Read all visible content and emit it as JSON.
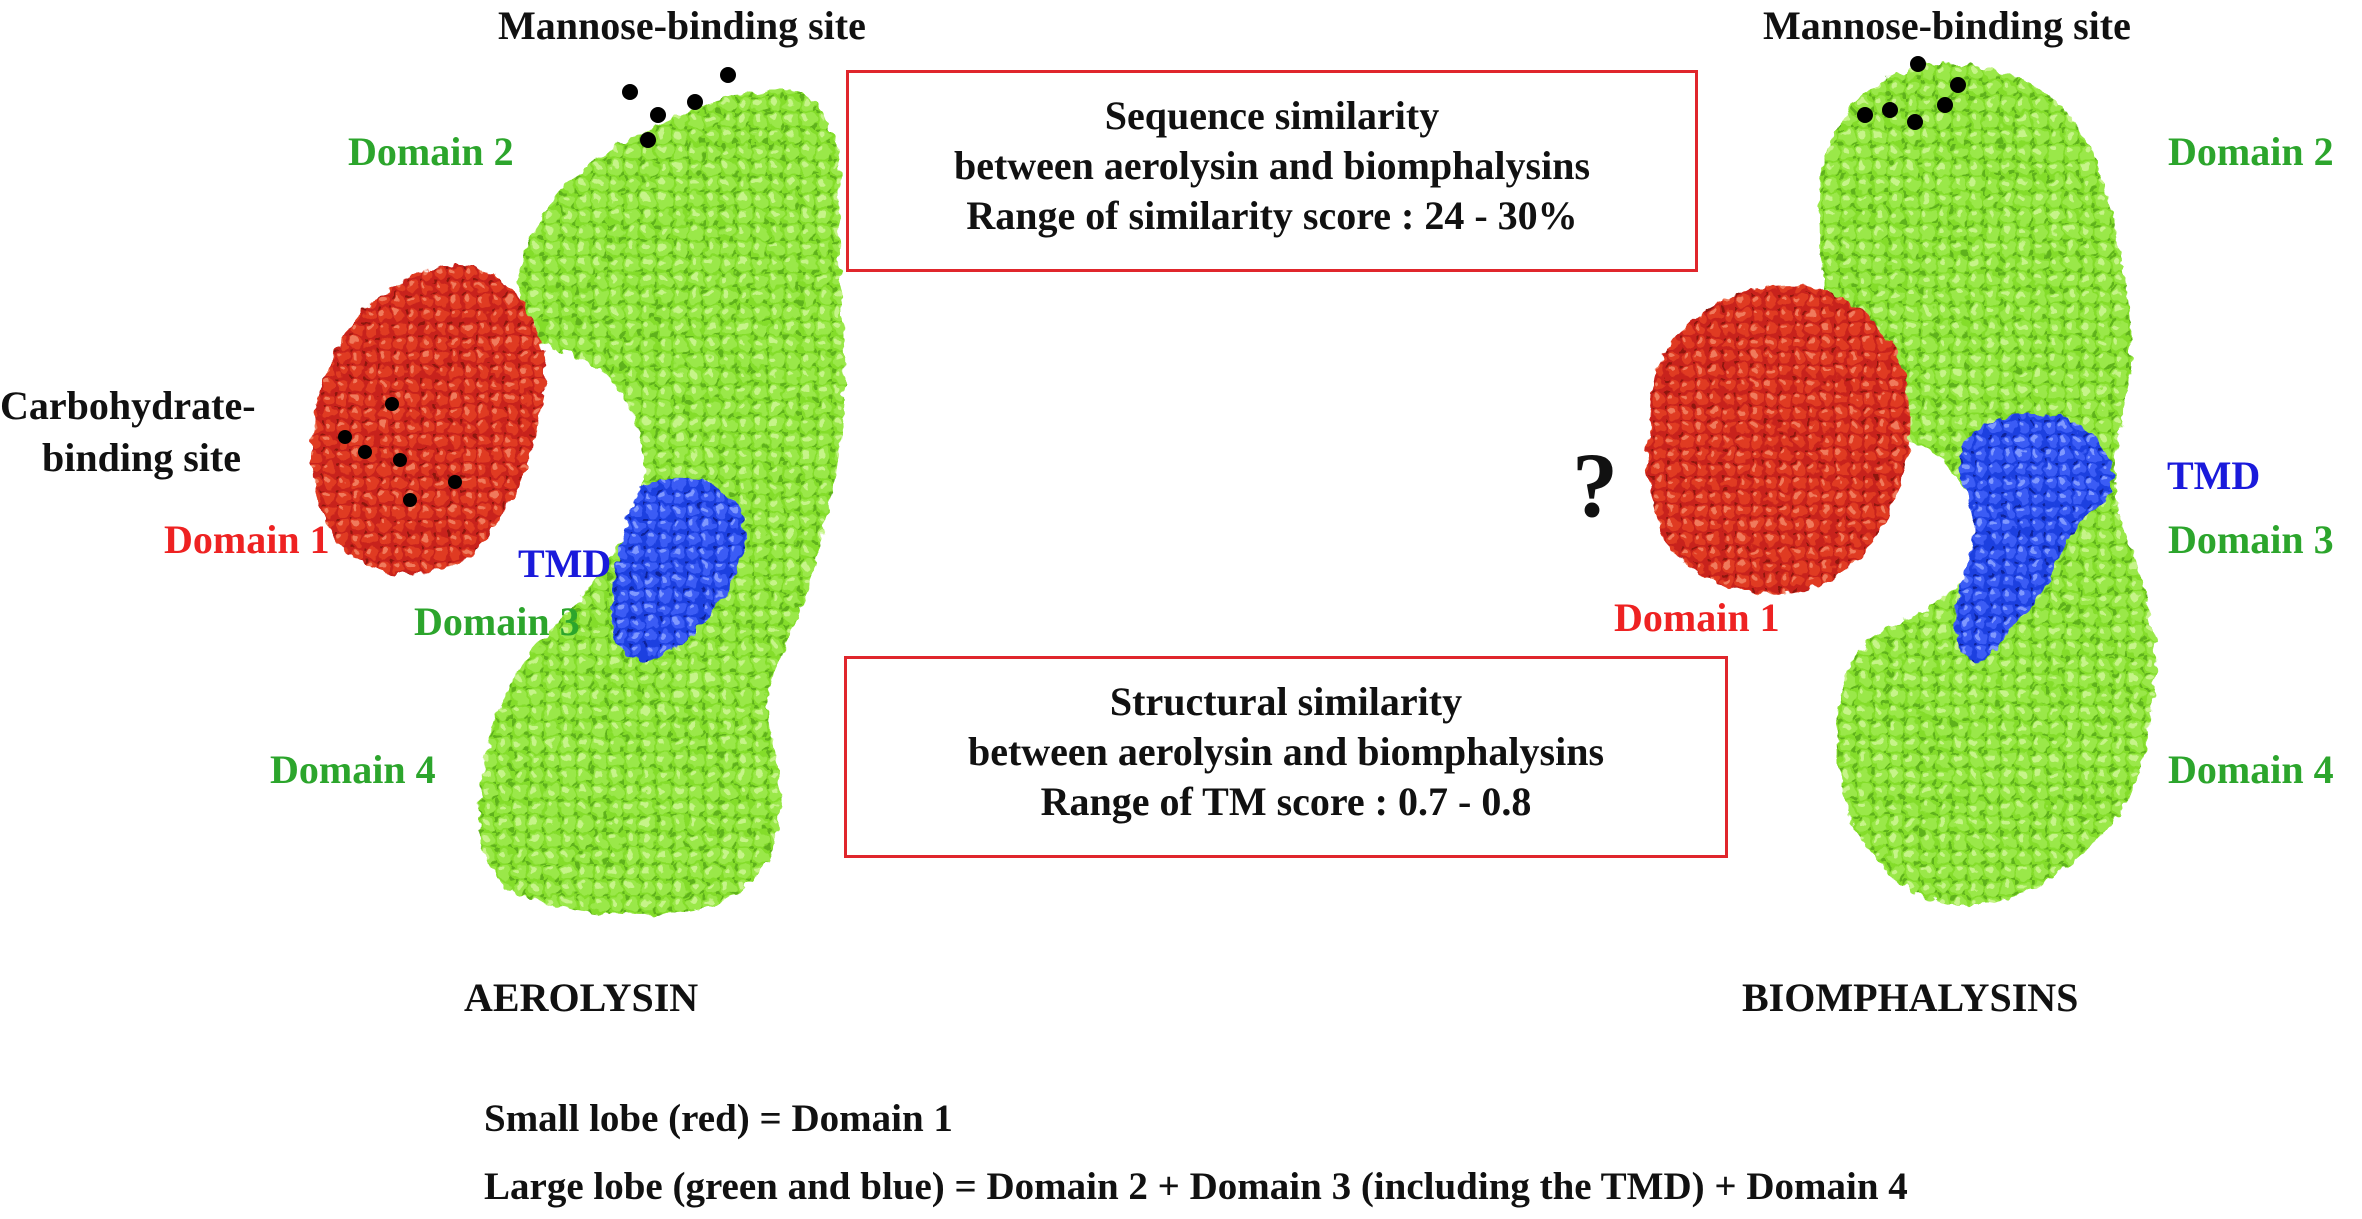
{
  "aerolysin": {
    "mannose_label": "Mannose-binding site",
    "domain2": "Domain 2",
    "carb_label_line1": "Carbohydrate-",
    "carb_label_line2": "binding site",
    "domain1": "Domain 1",
    "tmd": "TMD",
    "domain3": "Domain 3",
    "domain4": "Domain 4",
    "name": "AEROLYSIN"
  },
  "biomphalysins": {
    "mannose_label": "Mannose-binding site",
    "domain2": "Domain 2",
    "tmd": "TMD",
    "domain3": "Domain 3",
    "domain1": "Domain 1",
    "domain4": "Domain 4",
    "unknown_mark": "?",
    "name": "BIOMPHALYSINS"
  },
  "sequence_box": {
    "line1": "Sequence similarity",
    "line2": "between aerolysin and biomphalysins",
    "line3": "Range of similarity score : 24 - 30%"
  },
  "structure_box": {
    "line1": "Structural similarity",
    "line2": "between aerolysin and biomphalysins",
    "line3": "Range of TM score : 0.7 - 0.8"
  },
  "legend": {
    "line1": "Small lobe (red) = Domain 1",
    "line2": "Large lobe (green and blue) = Domain 2 + Domain 3 (including the TMD) + Domain 4"
  },
  "colors": {
    "green_lobe": "#84dd2c",
    "red_lobe": "#d42a16",
    "blue_tmd": "#1f3fe0",
    "box_border": "#e0262c"
  }
}
